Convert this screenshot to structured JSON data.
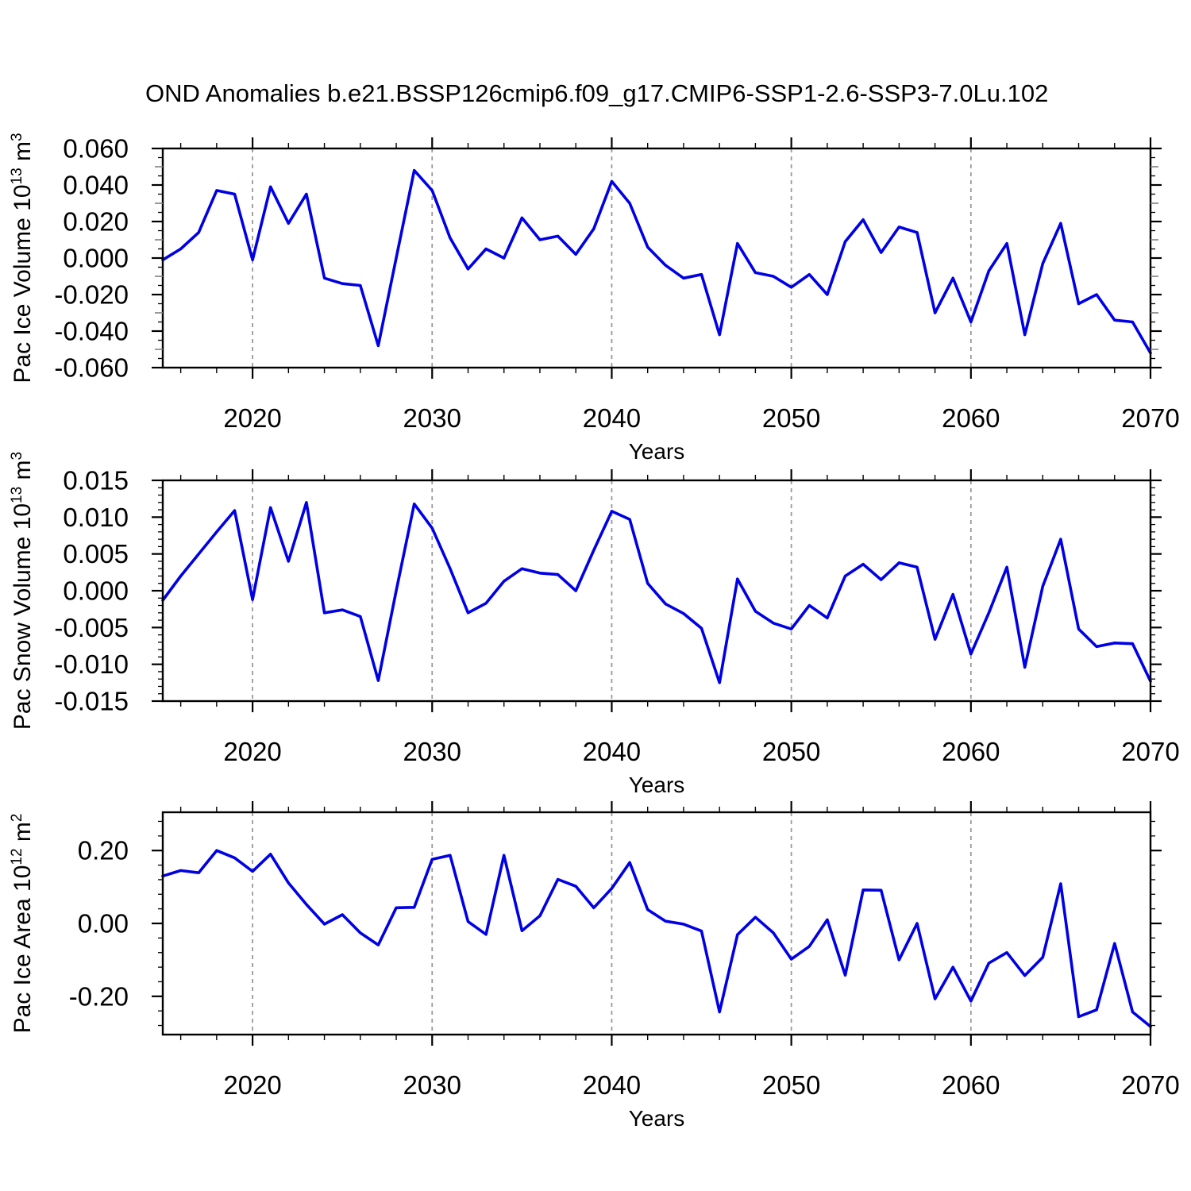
{
  "title": "OND Anomalies b.e21.BSSP126cmip6.f09_g17.CMIP6-SSP1-2.6-SSP3-7.0Lu.102",
  "background": "#ffffff",
  "line_color": "#0000e6",
  "grid_color": "#999999",
  "axis_color": "#000000",
  "mid_tick_color": "#808080",
  "xlabel": "Years",
  "x_major_ticks": [
    2020,
    2030,
    2040,
    2050,
    2060,
    2070
  ],
  "x_grid_years": [
    2020,
    2030,
    2040,
    2050,
    2060
  ],
  "x_minor_step": 2,
  "xlim": [
    2015,
    2070
  ],
  "years": [
    2015,
    2016,
    2017,
    2018,
    2019,
    2020,
    2021,
    2022,
    2023,
    2024,
    2025,
    2026,
    2027,
    2028,
    2029,
    2030,
    2031,
    2032,
    2033,
    2034,
    2035,
    2036,
    2037,
    2038,
    2039,
    2040,
    2041,
    2042,
    2043,
    2044,
    2045,
    2046,
    2047,
    2048,
    2049,
    2050,
    2051,
    2052,
    2053,
    2054,
    2055,
    2056,
    2057,
    2058,
    2059,
    2060,
    2061,
    2062,
    2063,
    2064,
    2065,
    2066,
    2067,
    2068,
    2069,
    2070
  ],
  "chart_data": [
    {
      "type": "line",
      "name": "pac-ice-volume",
      "ylabel": "Pac Ice Volume 10^13 m^3",
      "ylabel_parts": {
        "base1": "Pac Ice Volume 10",
        "sup1": "13",
        "base2": " m",
        "sup2": "3"
      },
      "xlabel": "Years",
      "ylim": [
        -0.06,
        0.06
      ],
      "grid": "vertical-dashed-decades",
      "yticks": [
        {
          "v": 0.06,
          "label": "0.060"
        },
        {
          "v": 0.04,
          "label": "0.040"
        },
        {
          "v": 0.02,
          "label": "0.020"
        },
        {
          "v": 0.0,
          "label": "0.000"
        },
        {
          "v": -0.02,
          "label": "-0.020"
        },
        {
          "v": -0.04,
          "label": "-0.040"
        },
        {
          "v": -0.06,
          "label": "-0.060"
        }
      ],
      "ytick_step": 0.02,
      "y_mid_step": 0.01,
      "y_minor_step": 0.005,
      "values": [
        -0.001,
        0.005,
        0.014,
        0.037,
        0.035,
        -0.001,
        0.039,
        0.019,
        0.035,
        -0.011,
        -0.014,
        -0.015,
        -0.048,
        0.0,
        0.048,
        0.037,
        0.011,
        -0.006,
        0.005,
        0.0,
        0.022,
        0.01,
        0.012,
        0.002,
        0.016,
        0.042,
        0.03,
        0.006,
        -0.004,
        -0.011,
        -0.009,
        -0.042,
        0.008,
        -0.008,
        -0.01,
        -0.016,
        -0.009,
        -0.02,
        0.009,
        0.021,
        0.003,
        0.017,
        0.014,
        -0.03,
        -0.011,
        -0.035,
        -0.007,
        0.008,
        -0.042,
        -0.003,
        0.019,
        -0.025,
        -0.02,
        -0.034,
        -0.035,
        -0.052
      ]
    },
    {
      "type": "line",
      "name": "pac-snow-volume",
      "ylabel": "Pac Snow Volume 10^13 m^3",
      "ylabel_parts": {
        "base1": "Pac Snow Volume 10",
        "sup1": "13",
        "base2": " m",
        "sup2": "3"
      },
      "xlabel": "Years",
      "ylim": [
        -0.015,
        0.015
      ],
      "grid": "vertical-dashed-decades",
      "yticks": [
        {
          "v": 0.015,
          "label": "0.015"
        },
        {
          "v": 0.01,
          "label": "0.010"
        },
        {
          "v": 0.005,
          "label": "0.005"
        },
        {
          "v": 0.0,
          "label": "0.000"
        },
        {
          "v": -0.005,
          "label": "-0.005"
        },
        {
          "v": -0.01,
          "label": "-0.010"
        },
        {
          "v": -0.015,
          "label": "-0.015"
        }
      ],
      "ytick_step": 0.005,
      "y_mid_step": null,
      "y_minor_step": 0.001,
      "values": [
        -0.0013,
        0.002,
        0.005,
        0.008,
        0.0109,
        -0.0012,
        0.0113,
        0.004,
        0.012,
        -0.003,
        -0.0026,
        -0.0035,
        -0.0122,
        0.0,
        0.0118,
        0.0085,
        0.003,
        -0.003,
        -0.0017,
        0.0013,
        0.003,
        0.0024,
        0.0022,
        0.0,
        0.0055,
        0.0108,
        0.0097,
        0.001,
        -0.0018,
        -0.0031,
        -0.0051,
        -0.0125,
        0.0016,
        -0.0028,
        -0.0044,
        -0.0052,
        -0.002,
        -0.0037,
        0.002,
        0.0036,
        0.0015,
        0.0038,
        0.0032,
        -0.0066,
        -0.0005,
        -0.0086,
        -0.003,
        0.0032,
        -0.0104,
        0.0006,
        0.007,
        -0.0052,
        -0.0076,
        -0.0071,
        -0.0072,
        -0.0123
      ]
    },
    {
      "type": "line",
      "name": "pac-ice-area",
      "ylabel": "Pac Ice Area 10^12 m^2",
      "ylabel_parts": {
        "base1": "Pac Ice Area 10",
        "sup1": "12",
        "base2": " m",
        "sup2": "2"
      },
      "xlabel": "Years",
      "ylim": [
        -0.305,
        0.305
      ],
      "grid": "vertical-dashed-decades",
      "yticks": [
        {
          "v": 0.2,
          "label": "0.20"
        },
        {
          "v": 0.0,
          "label": "0.00"
        },
        {
          "v": -0.2,
          "label": "-0.20"
        }
      ],
      "ytick_step": 0.2,
      "y_mid_step": null,
      "y_minor_step": 0.04,
      "values": [
        0.13,
        0.145,
        0.139,
        0.2,
        0.18,
        0.143,
        0.19,
        0.111,
        0.052,
        -0.002,
        0.024,
        -0.026,
        -0.059,
        0.043,
        0.044,
        0.176,
        0.187,
        0.005,
        -0.03,
        0.187,
        -0.02,
        0.021,
        0.121,
        0.102,
        0.043,
        0.096,
        0.167,
        0.038,
        0.006,
        -0.002,
        -0.021,
        -0.243,
        -0.031,
        0.017,
        -0.026,
        -0.098,
        -0.063,
        0.01,
        -0.142,
        0.092,
        0.091,
        -0.1,
        0.0,
        -0.207,
        -0.12,
        -0.213,
        -0.109,
        -0.08,
        -0.143,
        -0.093,
        0.109,
        -0.256,
        -0.237,
        -0.055,
        -0.243,
        -0.283
      ]
    }
  ]
}
